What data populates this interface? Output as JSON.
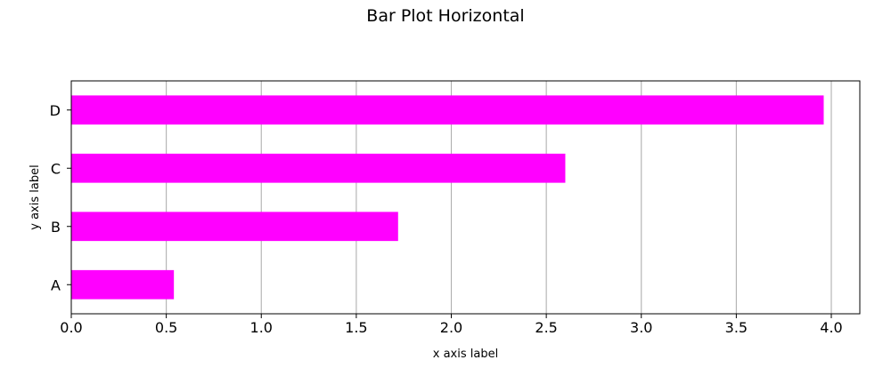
{
  "chart_data": {
    "type": "bar",
    "orientation": "horizontal",
    "title": "Bar Plot Horizontal",
    "xlabel": "x axis label",
    "ylabel": "y axis  label",
    "categories": [
      "A",
      "B",
      "C",
      "D"
    ],
    "values": [
      0.54,
      1.72,
      2.6,
      3.96
    ],
    "xlim": [
      0,
      4.15
    ],
    "xticks": [
      0.0,
      0.5,
      1.0,
      1.5,
      2.0,
      2.5,
      3.0,
      3.5,
      4.0
    ],
    "xtick_labels": [
      "0.0",
      "0.5",
      "1.0",
      "1.5",
      "2.0",
      "2.5",
      "3.0",
      "3.5",
      "4.0"
    ],
    "grid": "vertical",
    "legend": "none",
    "bar_color": "#ff00ff",
    "grid_color": "#b0b0b0"
  }
}
